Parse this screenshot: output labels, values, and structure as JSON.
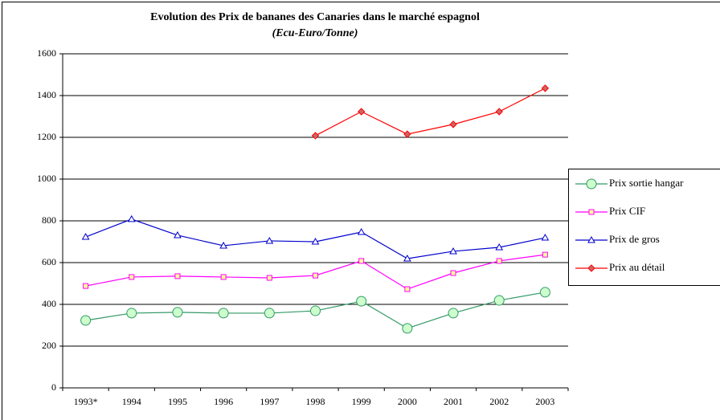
{
  "chart_data": {
    "type": "line",
    "title": "Evolution des Prix de bananes des Canaries dans le marché espagnol",
    "subtitle": "(Ecu-Euro/Tonne)",
    "categories": [
      "1993*",
      "1994",
      "1995",
      "1996",
      "1997",
      "1998",
      "1999",
      "2000",
      "2001",
      "2002",
      "2003"
    ],
    "series": [
      {
        "name": "Prix sortie hangar",
        "color": "#339966",
        "marker": "circle",
        "values": [
          323,
          358,
          362,
          358,
          358,
          369,
          415,
          285,
          358,
          419,
          458
        ]
      },
      {
        "name": "Prix CIF",
        "color": "#ff00ff",
        "marker": "square",
        "values": [
          488,
          531,
          535,
          531,
          527,
          538,
          608,
          473,
          550,
          608,
          638
        ]
      },
      {
        "name": "Prix de gros",
        "color": "#0000cc",
        "marker": "triangle",
        "values": [
          723,
          808,
          731,
          681,
          704,
          700,
          746,
          619,
          654,
          673,
          719
        ]
      },
      {
        "name": "Prix au détail",
        "color": "#ff0000",
        "marker": "diamond",
        "values": [
          null,
          null,
          null,
          null,
          null,
          1208,
          1323,
          1215,
          1262,
          1323,
          1435
        ]
      }
    ],
    "ylim": [
      0,
      1600
    ],
    "yticks": [
      0,
      200,
      400,
      600,
      800,
      1000,
      1200,
      1400,
      1600
    ],
    "grid": true,
    "legend": "right"
  }
}
